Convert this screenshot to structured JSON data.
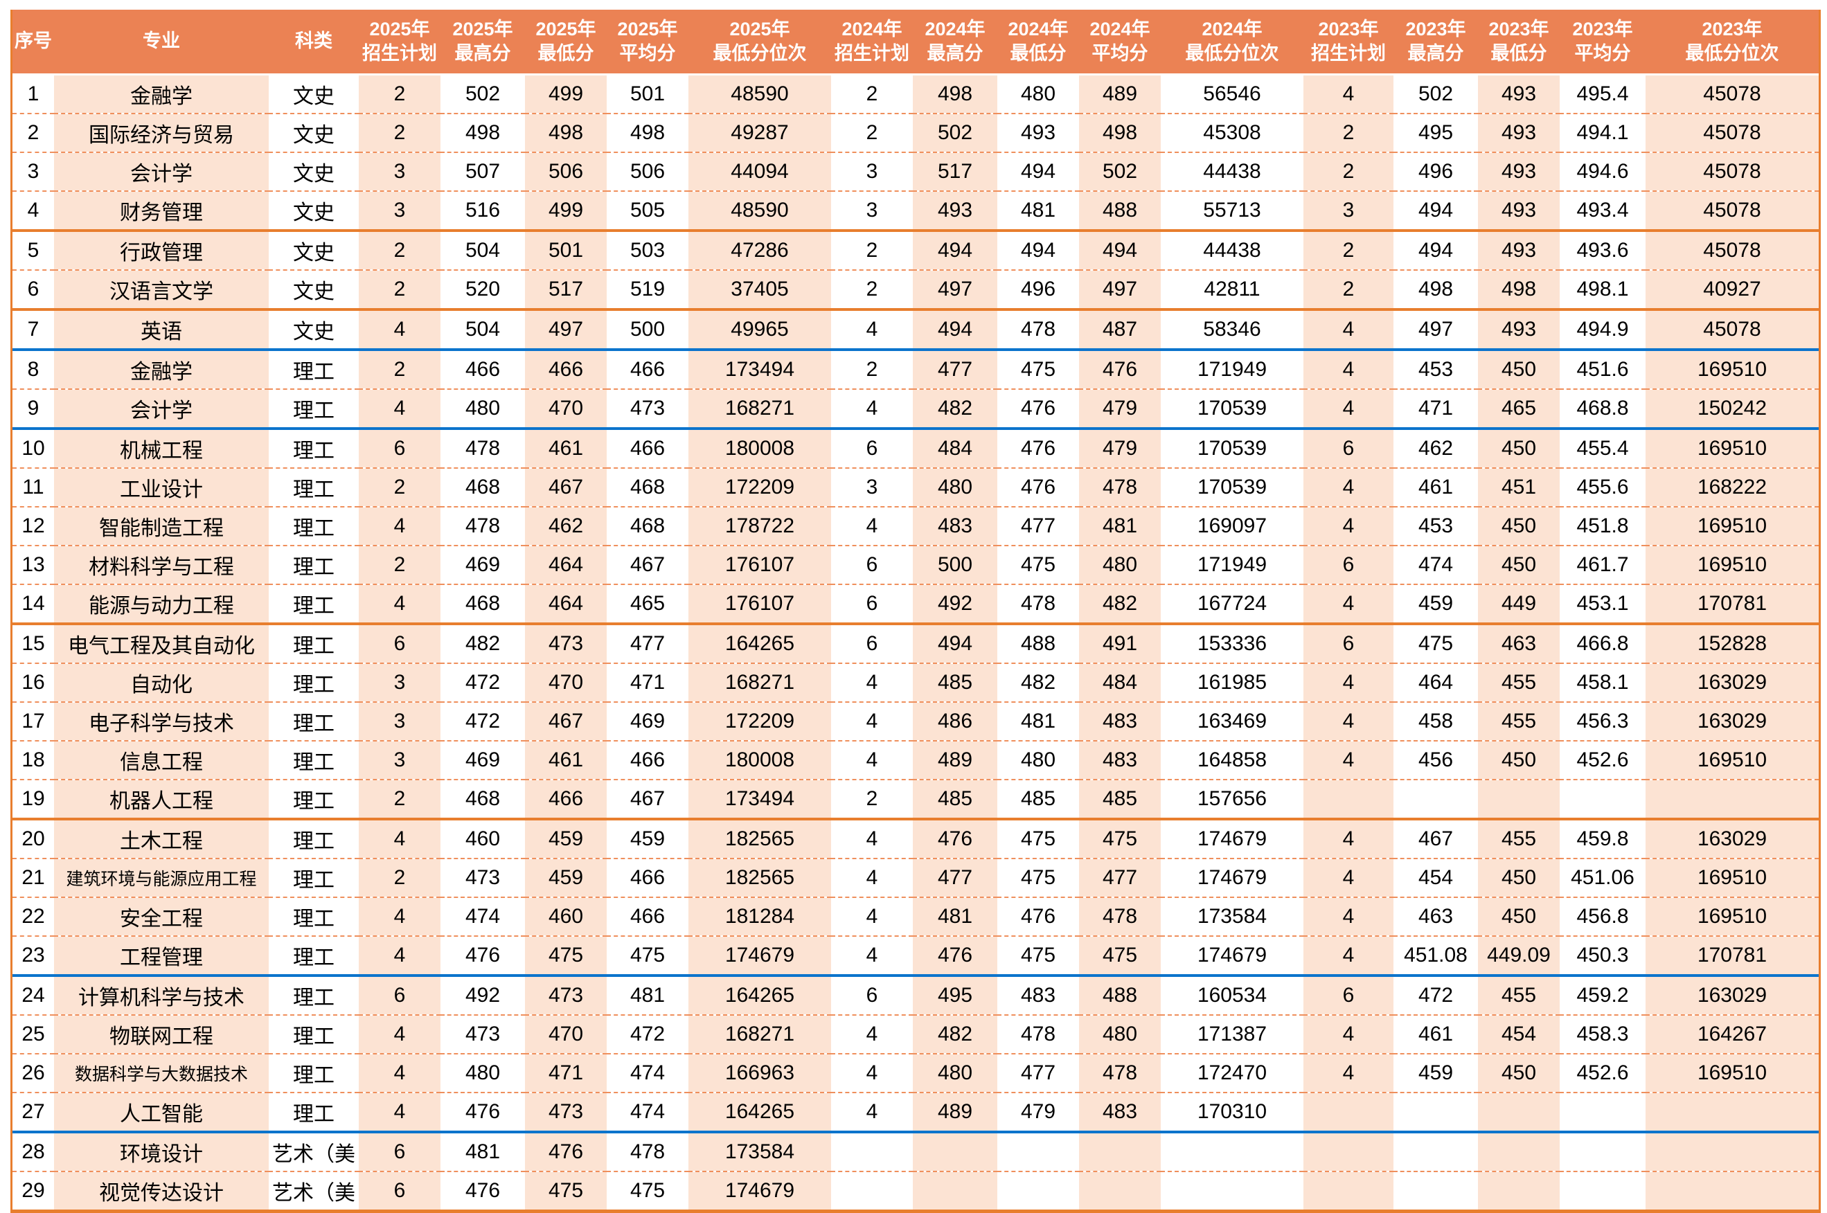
{
  "colors": {
    "header_bg": "#EB8254",
    "stripe_bg": "#FCE3D3",
    "divider_dashed": "#EF8F5C",
    "divider_orange": "#E87E2E",
    "divider_blue": "#0C74CC",
    "header_text": "#FFFFFF",
    "cell_text": "#000000"
  },
  "table": {
    "static_headers": [
      "序号",
      "专业",
      "科类"
    ],
    "years": [
      "2025年",
      "2024年",
      "2023年"
    ],
    "metrics": [
      "招生计划",
      "最高分",
      "最低分",
      "平均分",
      "最低分位次"
    ],
    "rows": [
      {
        "no": "1",
        "major": "金融学",
        "category": "文史",
        "values": [
          "2",
          "502",
          "499",
          "501",
          "48590",
          "2",
          "498",
          "480",
          "489",
          "56546",
          "4",
          "502",
          "493",
          "495.4",
          "45078"
        ],
        "divider": "dashed"
      },
      {
        "no": "2",
        "major": "国际经济与贸易",
        "category": "文史",
        "values": [
          "2",
          "498",
          "498",
          "498",
          "49287",
          "2",
          "502",
          "493",
          "498",
          "45308",
          "2",
          "495",
          "493",
          "494.1",
          "45078"
        ],
        "divider": "dashed"
      },
      {
        "no": "3",
        "major": "会计学",
        "category": "文史",
        "values": [
          "3",
          "507",
          "506",
          "506",
          "44094",
          "3",
          "517",
          "494",
          "502",
          "44438",
          "2",
          "496",
          "493",
          "494.6",
          "45078"
        ],
        "divider": "dashed"
      },
      {
        "no": "4",
        "major": "财务管理",
        "category": "文史",
        "values": [
          "3",
          "516",
          "499",
          "505",
          "48590",
          "3",
          "493",
          "481",
          "488",
          "55713",
          "3",
          "494",
          "493",
          "493.4",
          "45078"
        ],
        "divider": "orange"
      },
      {
        "no": "5",
        "major": "行政管理",
        "category": "文史",
        "values": [
          "2",
          "504",
          "501",
          "503",
          "47286",
          "2",
          "494",
          "494",
          "494",
          "44438",
          "2",
          "494",
          "493",
          "493.6",
          "45078"
        ],
        "divider": "dashed"
      },
      {
        "no": "6",
        "major": "汉语言文学",
        "category": "文史",
        "values": [
          "2",
          "520",
          "517",
          "519",
          "37405",
          "2",
          "497",
          "496",
          "497",
          "42811",
          "2",
          "498",
          "498",
          "498.1",
          "40927"
        ],
        "divider": "orange"
      },
      {
        "no": "7",
        "major": "英语",
        "category": "文史",
        "values": [
          "4",
          "504",
          "497",
          "500",
          "49965",
          "4",
          "494",
          "478",
          "487",
          "58346",
          "4",
          "497",
          "493",
          "494.9",
          "45078"
        ],
        "divider": "blue"
      },
      {
        "no": "8",
        "major": "金融学",
        "category": "理工",
        "values": [
          "2",
          "466",
          "466",
          "466",
          "173494",
          "2",
          "477",
          "475",
          "476",
          "171949",
          "4",
          "453",
          "450",
          "451.6",
          "169510"
        ],
        "divider": "dashed"
      },
      {
        "no": "9",
        "major": "会计学",
        "category": "理工",
        "values": [
          "4",
          "480",
          "470",
          "473",
          "168271",
          "4",
          "482",
          "476",
          "479",
          "170539",
          "4",
          "471",
          "465",
          "468.8",
          "150242"
        ],
        "divider": "blue"
      },
      {
        "no": "10",
        "major": "机械工程",
        "category": "理工",
        "values": [
          "6",
          "478",
          "461",
          "466",
          "180008",
          "6",
          "484",
          "476",
          "479",
          "170539",
          "6",
          "462",
          "450",
          "455.4",
          "169510"
        ],
        "divider": "dashed"
      },
      {
        "no": "11",
        "major": "工业设计",
        "category": "理工",
        "values": [
          "2",
          "468",
          "467",
          "468",
          "172209",
          "3",
          "480",
          "476",
          "478",
          "170539",
          "4",
          "461",
          "451",
          "455.6",
          "168222"
        ],
        "divider": "dashed"
      },
      {
        "no": "12",
        "major": "智能制造工程",
        "category": "理工",
        "values": [
          "4",
          "478",
          "462",
          "468",
          "178722",
          "4",
          "483",
          "477",
          "481",
          "169097",
          "4",
          "453",
          "450",
          "451.8",
          "169510"
        ],
        "divider": "dashed"
      },
      {
        "no": "13",
        "major": "材料科学与工程",
        "category": "理工",
        "values": [
          "2",
          "469",
          "464",
          "467",
          "176107",
          "6",
          "500",
          "475",
          "480",
          "171949",
          "6",
          "474",
          "450",
          "461.7",
          "169510"
        ],
        "divider": "dashed"
      },
      {
        "no": "14",
        "major": "能源与动力工程",
        "category": "理工",
        "values": [
          "4",
          "468",
          "464",
          "465",
          "176107",
          "6",
          "492",
          "478",
          "482",
          "167724",
          "4",
          "459",
          "449",
          "453.1",
          "170781"
        ],
        "divider": "orange"
      },
      {
        "no": "15",
        "major": "电气工程及其自动化",
        "category": "理工",
        "values": [
          "6",
          "482",
          "473",
          "477",
          "164265",
          "6",
          "494",
          "488",
          "491",
          "153336",
          "6",
          "475",
          "463",
          "466.8",
          "152828"
        ],
        "divider": "dashed"
      },
      {
        "no": "16",
        "major": "自动化",
        "category": "理工",
        "values": [
          "3",
          "472",
          "470",
          "471",
          "168271",
          "4",
          "485",
          "482",
          "484",
          "161985",
          "4",
          "464",
          "455",
          "458.1",
          "163029"
        ],
        "divider": "dashed"
      },
      {
        "no": "17",
        "major": "电子科学与技术",
        "category": "理工",
        "values": [
          "3",
          "472",
          "467",
          "469",
          "172209",
          "4",
          "486",
          "481",
          "483",
          "163469",
          "4",
          "458",
          "455",
          "456.3",
          "163029"
        ],
        "divider": "dashed"
      },
      {
        "no": "18",
        "major": "信息工程",
        "category": "理工",
        "values": [
          "3",
          "469",
          "461",
          "466",
          "180008",
          "4",
          "489",
          "480",
          "483",
          "164858",
          "4",
          "456",
          "450",
          "452.6",
          "169510"
        ],
        "divider": "dashed"
      },
      {
        "no": "19",
        "major": "机器人工程",
        "category": "理工",
        "values": [
          "2",
          "468",
          "466",
          "467",
          "173494",
          "2",
          "485",
          "485",
          "485",
          "157656",
          "",
          "",
          "",
          "",
          ""
        ],
        "divider": "orange"
      },
      {
        "no": "20",
        "major": "土木工程",
        "category": "理工",
        "values": [
          "4",
          "460",
          "459",
          "459",
          "182565",
          "4",
          "476",
          "475",
          "475",
          "174679",
          "4",
          "467",
          "455",
          "459.8",
          "163029"
        ],
        "divider": "dashed"
      },
      {
        "no": "21",
        "major": "建筑环境与能源应用工程",
        "category": "理工",
        "values": [
          "2",
          "473",
          "459",
          "466",
          "182565",
          "4",
          "477",
          "475",
          "477",
          "174679",
          "4",
          "454",
          "450",
          "451.06",
          "169510"
        ],
        "divider": "dashed"
      },
      {
        "no": "22",
        "major": "安全工程",
        "category": "理工",
        "values": [
          "4",
          "474",
          "460",
          "466",
          "181284",
          "4",
          "481",
          "476",
          "478",
          "173584",
          "4",
          "463",
          "450",
          "456.8",
          "169510"
        ],
        "divider": "dashed"
      },
      {
        "no": "23",
        "major": "工程管理",
        "category": "理工",
        "values": [
          "4",
          "476",
          "475",
          "475",
          "174679",
          "4",
          "476",
          "475",
          "475",
          "174679",
          "4",
          "451.08",
          "449.09",
          "450.3",
          "170781"
        ],
        "divider": "blue"
      },
      {
        "no": "24",
        "major": "计算机科学与技术",
        "category": "理工",
        "values": [
          "6",
          "492",
          "473",
          "481",
          "164265",
          "6",
          "495",
          "483",
          "488",
          "160534",
          "6",
          "472",
          "455",
          "459.2",
          "163029"
        ],
        "divider": "dashed"
      },
      {
        "no": "25",
        "major": "物联网工程",
        "category": "理工",
        "values": [
          "4",
          "473",
          "470",
          "472",
          "168271",
          "4",
          "482",
          "478",
          "480",
          "171387",
          "4",
          "461",
          "454",
          "458.3",
          "164267"
        ],
        "divider": "dashed"
      },
      {
        "no": "26",
        "major": "数据科学与大数据技术",
        "category": "理工",
        "values": [
          "4",
          "480",
          "471",
          "474",
          "166963",
          "4",
          "480",
          "477",
          "478",
          "172470",
          "4",
          "459",
          "450",
          "452.6",
          "169510"
        ],
        "divider": "dashed"
      },
      {
        "no": "27",
        "major": "人工智能",
        "category": "理工",
        "values": [
          "4",
          "476",
          "473",
          "474",
          "164265",
          "4",
          "489",
          "479",
          "483",
          "170310",
          "",
          "",
          "",
          "",
          ""
        ],
        "divider": "blue"
      },
      {
        "no": "28",
        "major": "环境设计",
        "category": "艺术（美",
        "values": [
          "6",
          "481",
          "476",
          "478",
          "173584",
          "",
          "",
          "",
          "",
          "",
          "",
          "",
          "",
          "",
          ""
        ],
        "divider": "dashed"
      },
      {
        "no": "29",
        "major": "视觉传达设计",
        "category": "艺术（美",
        "values": [
          "6",
          "476",
          "475",
          "475",
          "174679",
          "",
          "",
          "",
          "",
          "",
          "",
          "",
          "",
          "",
          ""
        ],
        "divider": "none"
      }
    ]
  }
}
